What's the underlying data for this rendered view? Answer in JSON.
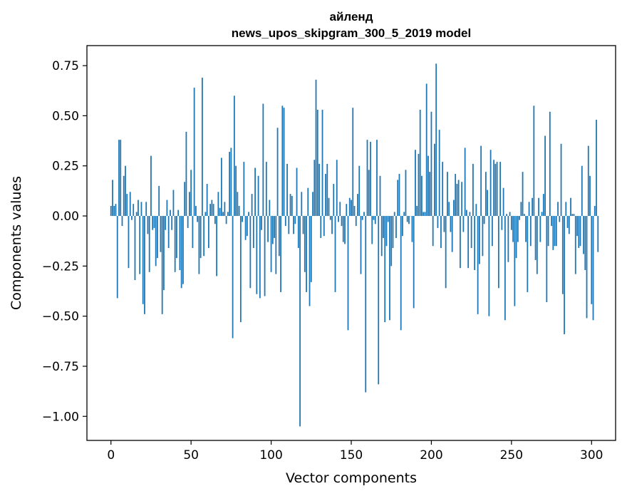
{
  "chart_data": {
    "type": "bar",
    "title": "айленд",
    "subtitle": "news_upos_skipgram_300_5_2019 model",
    "xlabel": "Vector components",
    "ylabel": "Components values",
    "xlim": [
      -15,
      315
    ],
    "ylim": [
      -1.12,
      0.85
    ],
    "xticks": [
      0,
      50,
      100,
      150,
      200,
      250,
      300
    ],
    "xtick_labels": [
      "0",
      "50",
      "100",
      "150",
      "200",
      "250",
      "300"
    ],
    "yticks": [
      -1.0,
      -0.75,
      -0.5,
      -0.25,
      0.0,
      0.25,
      0.5,
      0.75
    ],
    "ytick_labels": [
      "−1.00",
      "−0.75",
      "−0.50",
      "−0.25",
      "0.00",
      "0.25",
      "0.50",
      "0.75"
    ],
    "grid": false,
    "color": "#1f77b4",
    "values": [
      0.05,
      0.18,
      0.05,
      0.06,
      -0.41,
      0.38,
      0.38,
      -0.05,
      0.2,
      0.25,
      0.11,
      -0.26,
      0.12,
      -0.02,
      0.06,
      -0.32,
      0.02,
      0.08,
      -0.29,
      0.07,
      -0.44,
      -0.49,
      0.07,
      -0.09,
      -0.28,
      0.3,
      -0.07,
      -0.06,
      -0.25,
      -0.21,
      0.15,
      -0.18,
      -0.49,
      -0.37,
      -0.07,
      0.08,
      -0.16,
      0.03,
      -0.07,
      0.13,
      -0.28,
      -0.21,
      0.03,
      -0.27,
      -0.36,
      -0.34,
      0.17,
      0.42,
      -0.06,
      0.12,
      0.23,
      -0.16,
      0.64,
      0.05,
      -0.03,
      -0.29,
      -0.21,
      0.69,
      -0.2,
      0.02,
      0.16,
      -0.16,
      0.06,
      0.08,
      0.06,
      -0.04,
      -0.3,
      0.12,
      0.04,
      0.29,
      0.02,
      0.07,
      -0.04,
      0.02,
      0.32,
      0.34,
      -0.61,
      0.6,
      0.25,
      0.12,
      0.05,
      -0.53,
      -0.03,
      0.27,
      -0.12,
      -0.1,
      0.02,
      -0.36,
      0.11,
      -0.16,
      0.24,
      -0.39,
      0.2,
      -0.41,
      -0.07,
      0.56,
      -0.4,
      0.27,
      -0.13,
      0.08,
      -0.28,
      -0.14,
      -0.11,
      -0.29,
      0.44,
      -0.2,
      -0.38,
      0.55,
      0.54,
      -0.05,
      0.26,
      -0.09,
      0.11,
      0.1,
      -0.09,
      -0.04,
      0.24,
      -0.16,
      -1.05,
      0.12,
      -0.09,
      -0.28,
      -0.38,
      0.14,
      -0.45,
      -0.33,
      0.12,
      0.28,
      0.68,
      0.53,
      0.26,
      -0.11,
      0.53,
      -0.1,
      0.21,
      0.26,
      0.09,
      -0.02,
      -0.09,
      0.16,
      -0.38,
      0.28,
      -0.03,
      0.07,
      -0.05,
      -0.13,
      -0.14,
      0.06,
      -0.57,
      0.09,
      0.08,
      0.54,
      0.05,
      -0.05,
      0.11,
      0.25,
      -0.29,
      -0.02,
      0.02,
      -0.88,
      0.38,
      0.23,
      0.37,
      -0.14,
      -0.02,
      -0.04,
      0.38,
      -0.84,
      0.2,
      -0.2,
      -0.11,
      -0.53,
      -0.15,
      -0.03,
      -0.52,
      -0.25,
      -0.16,
      0.02,
      -0.11,
      0.18,
      0.21,
      -0.57,
      -0.1,
      0.02,
      0.23,
      -0.03,
      -0.04,
      0.0,
      -0.13,
      -0.46,
      0.33,
      0.05,
      0.31,
      0.53,
      0.2,
      0.02,
      0.02,
      0.66,
      0.3,
      0.22,
      0.52,
      -0.15,
      0.36,
      0.76,
      -0.06,
      0.43,
      -0.16,
      0.27,
      -0.08,
      -0.36,
      0.22,
      0.07,
      -0.08,
      -0.18,
      0.08,
      0.21,
      0.16,
      0.18,
      -0.26,
      0.17,
      -0.08,
      0.34,
      0.03,
      -0.26,
      0.02,
      -0.16,
      0.26,
      -0.27,
      0.06,
      -0.49,
      -0.24,
      0.35,
      -0.2,
      -0.04,
      0.22,
      0.13,
      -0.5,
      0.33,
      -0.15,
      0.28,
      0.26,
      0.27,
      -0.36,
      0.27,
      -0.07,
      0.14,
      -0.52,
      0.01,
      -0.23,
      0.02,
      -0.07,
      -0.13,
      -0.45,
      -0.21,
      -0.13,
      -0.02,
      0.07,
      0.22,
      0.01,
      -0.13,
      -0.38,
      0.07,
      -0.15,
      0.09,
      0.55,
      -0.22,
      -0.29,
      0.09,
      -0.13,
      0.02,
      0.11,
      0.4,
      -0.43,
      -0.15,
      0.52,
      -0.05,
      -0.17,
      -0.15,
      -0.15,
      0.07,
      -0.03,
      0.36,
      -0.39,
      -0.59,
      0.07,
      -0.06,
      -0.09,
      0.09,
      0.01,
      0.01,
      -0.29,
      -0.1,
      -0.16,
      -0.15,
      0.25,
      -0.19,
      -0.27,
      -0.51,
      0.35,
      0.2,
      -0.44,
      -0.52,
      0.05,
      0.48,
      -0.18
    ]
  }
}
